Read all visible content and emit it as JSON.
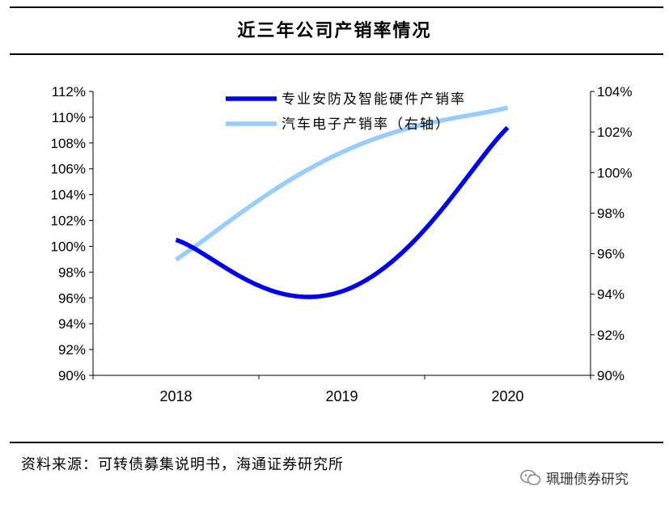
{
  "header": {
    "title": "近三年公司产销率情况"
  },
  "chart_data": {
    "type": "line",
    "title": "近三年公司产销率情况",
    "categories": [
      "2018",
      "2019",
      "2020"
    ],
    "y_left": {
      "min": 90,
      "max": 112,
      "step": 2,
      "suffix": "%",
      "ticks": [
        "90%",
        "92%",
        "94%",
        "96%",
        "98%",
        "100%",
        "102%",
        "104%",
        "106%",
        "108%",
        "110%",
        "112%"
      ]
    },
    "y_right": {
      "min": 90,
      "max": 104,
      "step": 2,
      "suffix": "%",
      "ticks": [
        "90%",
        "92%",
        "94%",
        "96%",
        "98%",
        "100%",
        "102%",
        "104%"
      ]
    },
    "series": [
      {
        "name": "专业安防及智能硬件产销率",
        "axis": "left",
        "color": "#0000ee",
        "values": [
          100.5,
          96.5,
          109.2
        ]
      },
      {
        "name": "汽车电子产销率（右轴）",
        "axis": "right",
        "color": "#99ccff",
        "values": [
          95.7,
          101.0,
          103.2
        ]
      }
    ],
    "legend_position": "top"
  },
  "footer": {
    "source": "资料来源：可转债募集说明书，海通证券研究所",
    "brand": "珮珊债券研究"
  }
}
